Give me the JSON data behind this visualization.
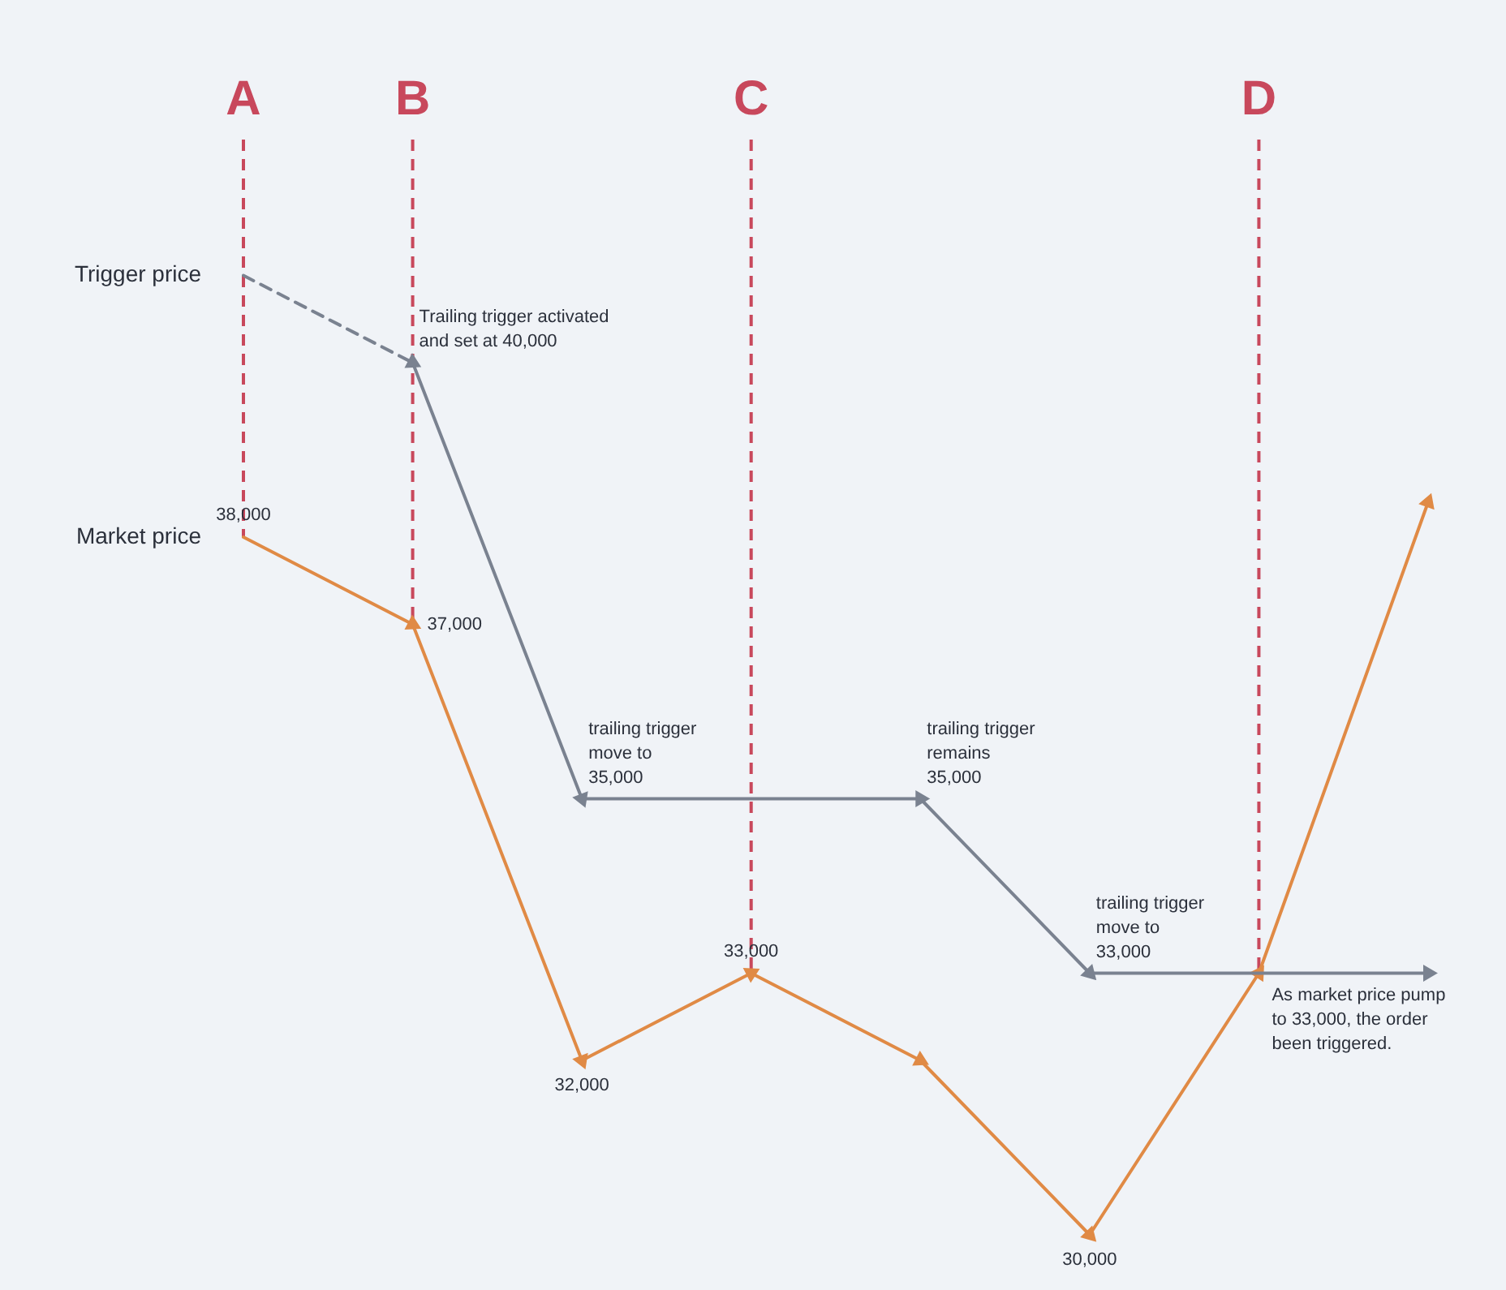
{
  "chart_data": {
    "type": "line",
    "categories": [
      "A",
      "B",
      null,
      "C",
      null,
      null,
      "D",
      null
    ],
    "series": [
      {
        "name": "Trigger price",
        "color": "#7a8290",
        "line_style": "dashed",
        "values": [
          41000,
          40000,
          null,
          null,
          null,
          null,
          null,
          null
        ]
      },
      {
        "color": "#7a8290",
        "values": [
          null,
          40000,
          35000,
          35000,
          35000,
          33000,
          33000,
          33000
        ],
        "value_labels": [
          null,
          "Trailing trigger activated\nand set at 40,000",
          "trailing trigger\nmove to\n35,000",
          null,
          "trailing trigger\nremains\n35,000",
          "trailing trigger\nmove to\n33,000",
          null,
          null
        ]
      },
      {
        "name": "Market price",
        "color": "#e08a45",
        "values": [
          38000,
          37000,
          32000,
          33000,
          32000,
          30000,
          33000,
          38400
        ],
        "value_labels": [
          "38,000",
          "37,000",
          "32,000",
          "33,000",
          null,
          "30,000",
          "As market price pump\nto 33,000, the order\nbeen triggered.",
          null
        ]
      }
    ],
    "tick_labels": "x",
    "marker": "triangle",
    "ref_lines": [
      {
        "axis": "x",
        "value": "A",
        "color": "#c8485c",
        "line_style": "dashed"
      },
      {
        "axis": "x",
        "value": "B",
        "color": "#c8485c",
        "line_style": "dashed"
      },
      {
        "axis": "x",
        "value": "C",
        "color": "#c8485c",
        "line_style": "dashed"
      },
      {
        "axis": "x",
        "value": "D",
        "color": "#c8485c",
        "line_style": "dashed"
      }
    ]
  }
}
